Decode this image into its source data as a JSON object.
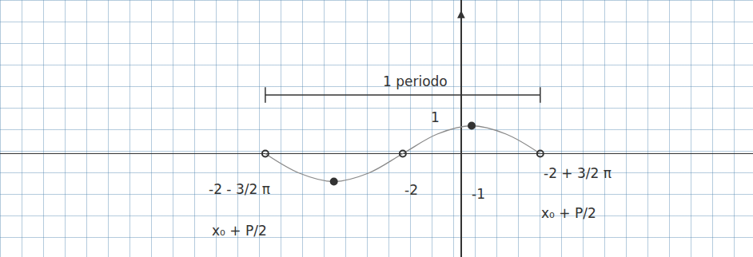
{
  "chart_data": {
    "type": "line",
    "tick_labels": false,
    "xlim": [
      -15.8,
      10
    ],
    "ylim": [
      -3.7,
      5.5
    ],
    "series": [
      {
        "type": "line",
        "color": "#8a8a8a",
        "line_style": "solid",
        "x": [
          -6.71,
          -5.54,
          -4.36,
          -3.18,
          -2,
          -0.82,
          0.36,
          1.54,
          2.71
        ],
        "values": [
          0,
          -0.7,
          -1,
          -0.7,
          0,
          0.7,
          1,
          0.7,
          0
        ]
      },
      {
        "type": "scatter",
        "color": "#333333",
        "marker": "circle-open",
        "x": [
          -6.71,
          -2,
          2.71
        ],
        "values": [
          0,
          0,
          0
        ]
      },
      {
        "type": "scatter",
        "color": "#333333",
        "marker": "circle",
        "x": [
          -4.36,
          0.36
        ],
        "values": [
          -1,
          1
        ]
      }
    ],
    "period": {
      "label": "1 periodo",
      "from": -6.71,
      "to": 2.71,
      "y": 2.1
    },
    "annotations": [
      {
        "text": "1 periodo",
        "x": -1.56,
        "y": 2.6
      },
      {
        "text": "1",
        "x": -0.88,
        "y": 1.29
      },
      {
        "text": "-1",
        "x": 0.6,
        "y": -1.43
      },
      {
        "text": "-2",
        "x": -1.7,
        "y": -1.3
      },
      {
        "text": "-2 - 3/2 π",
        "x": -7.6,
        "y": -1.26
      },
      {
        "text": "x₀ + P/2",
        "x": -7.6,
        "y": -2.77
      },
      {
        "text": "-2 + 3/2 π",
        "x": 4.0,
        "y": -0.71
      },
      {
        "text": "x₀ + P/2",
        "x": 3.7,
        "y": -2.14
      }
    ]
  }
}
